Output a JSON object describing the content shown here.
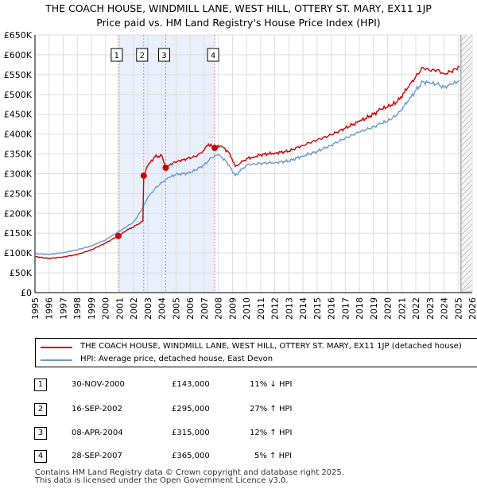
{
  "title_line1": "THE COACH HOUSE, WINDMILL LANE, WEST HILL, OTTERY ST. MARY, EX11 1JP",
  "title_line2": "Price paid vs. HM Land Registry's House Price Index (HPI)",
  "chart_data": {
    "type": "line",
    "title": "THE COACH HOUSE, WINDMILL LANE, WEST HILL, OTTERY ST. MARY, EX11 1JP Price paid vs. HM Land Registry's House Price Index (HPI)",
    "xlim": [
      1995,
      2026
    ],
    "ylim": [
      0,
      650000
    ],
    "x_ticks": [
      1995,
      1996,
      1997,
      1998,
      1999,
      2000,
      2001,
      2002,
      2003,
      2004,
      2005,
      2006,
      2007,
      2008,
      2009,
      2010,
      2011,
      2012,
      2013,
      2014,
      2015,
      2016,
      2017,
      2018,
      2019,
      2020,
      2021,
      2022,
      2023,
      2024,
      2025,
      2026
    ],
    "y_ticks": [
      0,
      50000,
      100000,
      150000,
      200000,
      250000,
      300000,
      350000,
      400000,
      450000,
      500000,
      550000,
      600000,
      650000
    ],
    "y_tick_labels": [
      "£0",
      "£50K",
      "£100K",
      "£150K",
      "£200K",
      "£250K",
      "£300K",
      "£350K",
      "£400K",
      "£450K",
      "£500K",
      "£550K",
      "£600K",
      "£650K"
    ],
    "grid": true,
    "colors": {
      "property": "#cc0000",
      "hpi": "#6b9acb",
      "marker": "#cc0000",
      "vline": "#d98080",
      "shade": "#e9f0fb",
      "forecast_hatch": "#aaaaaa"
    },
    "forecast_start": 2025.2,
    "series": [
      {
        "name": "THE COACH HOUSE, WINDMILL LANE, WEST HILL, OTTERY ST. MARY, EX11 1JP (detached house)",
        "points": [
          [
            1995,
            91000
          ],
          [
            1996,
            86000
          ],
          [
            1997,
            90000
          ],
          [
            1998,
            96000
          ],
          [
            1999,
            108000
          ],
          [
            2000,
            125000
          ],
          [
            2000.9,
            143000
          ],
          [
            2001.5,
            157000
          ],
          [
            2002.3,
            172000
          ],
          [
            2002.65,
            180000
          ],
          [
            2002.71,
            295000
          ],
          [
            2003,
            320000
          ],
          [
            2003.5,
            343000
          ],
          [
            2004,
            345000
          ],
          [
            2004.27,
            315000
          ],
          [
            2004.8,
            328000
          ],
          [
            2005.5,
            335000
          ],
          [
            2006.5,
            345000
          ],
          [
            2007,
            360000
          ],
          [
            2007.3,
            375000
          ],
          [
            2007.74,
            365000
          ],
          [
            2008.2,
            370000
          ],
          [
            2008.8,
            352000
          ],
          [
            2009.2,
            318000
          ],
          [
            2009.6,
            328000
          ],
          [
            2010,
            338000
          ],
          [
            2010.5,
            342000
          ],
          [
            2011,
            348000
          ],
          [
            2012,
            352000
          ],
          [
            2013,
            357000
          ],
          [
            2014,
            372000
          ],
          [
            2015,
            385000
          ],
          [
            2016,
            398000
          ],
          [
            2017,
            415000
          ],
          [
            2018,
            432000
          ],
          [
            2019,
            450000
          ],
          [
            2019.5,
            462000
          ],
          [
            2020,
            468000
          ],
          [
            2020.7,
            482000
          ],
          [
            2021.5,
            520000
          ],
          [
            2022,
            545000
          ],
          [
            2022.5,
            568000
          ],
          [
            2023,
            560000
          ],
          [
            2023.5,
            562000
          ],
          [
            2024,
            552000
          ],
          [
            2024.5,
            558000
          ],
          [
            2025.1,
            570000
          ]
        ]
      },
      {
        "name": "HPI: Average price, detached house, East Devon",
        "points": [
          [
            1995,
            98000
          ],
          [
            1996,
            96000
          ],
          [
            1997,
            101000
          ],
          [
            1998,
            108000
          ],
          [
            1999,
            118000
          ],
          [
            2000,
            133000
          ],
          [
            2001,
            155000
          ],
          [
            2002,
            178000
          ],
          [
            2002.5,
            205000
          ],
          [
            2003,
            240000
          ],
          [
            2003.5,
            262000
          ],
          [
            2004,
            278000
          ],
          [
            2004.5,
            290000
          ],
          [
            2005,
            298000
          ],
          [
            2006,
            302000
          ],
          [
            2007,
            322000
          ],
          [
            2007.5,
            340000
          ],
          [
            2008,
            348000
          ],
          [
            2008.6,
            330000
          ],
          [
            2009.2,
            295000
          ],
          [
            2009.7,
            312000
          ],
          [
            2010,
            322000
          ],
          [
            2011,
            326000
          ],
          [
            2012,
            328000
          ],
          [
            2013,
            332000
          ],
          [
            2014,
            345000
          ],
          [
            2015,
            356000
          ],
          [
            2016,
            372000
          ],
          [
            2017,
            390000
          ],
          [
            2018,
            405000
          ],
          [
            2019,
            418000
          ],
          [
            2019.5,
            426000
          ],
          [
            2020,
            432000
          ],
          [
            2020.7,
            450000
          ],
          [
            2021.5,
            485000
          ],
          [
            2022,
            510000
          ],
          [
            2022.5,
            532000
          ],
          [
            2023,
            528000
          ],
          [
            2023.5,
            526000
          ],
          [
            2024,
            518000
          ],
          [
            2024.5,
            525000
          ],
          [
            2025.1,
            535000
          ]
        ]
      }
    ],
    "sales": [
      {
        "label": "1",
        "x": 2000.91,
        "price": 143000
      },
      {
        "label": "2",
        "x": 2002.71,
        "price": 295000
      },
      {
        "label": "3",
        "x": 2004.27,
        "price": 315000
      },
      {
        "label": "4",
        "x": 2007.74,
        "price": 365000
      }
    ]
  },
  "legend": {
    "property": "THE COACH HOUSE, WINDMILL LANE, WEST HILL, OTTERY ST. MARY, EX11 1JP (detached house)",
    "hpi": "HPI: Average price, detached house, East Devon"
  },
  "transactions": [
    {
      "num": "1",
      "date": "30-NOV-2000",
      "price": "£143,000",
      "hpi": "11% ↓ HPI"
    },
    {
      "num": "2",
      "date": "16-SEP-2002",
      "price": "£295,000",
      "hpi": "27% ↑ HPI"
    },
    {
      "num": "3",
      "date": "08-APR-2004",
      "price": "£315,000",
      "hpi": "12% ↑ HPI"
    },
    {
      "num": "4",
      "date": "28-SEP-2007",
      "price": "£365,000",
      "hpi": "5% ↑ HPI"
    }
  ],
  "footer_line1": "Contains HM Land Registry data © Crown copyright and database right 2025.",
  "footer_line2": "This data is licensed under the Open Government Licence v3.0."
}
